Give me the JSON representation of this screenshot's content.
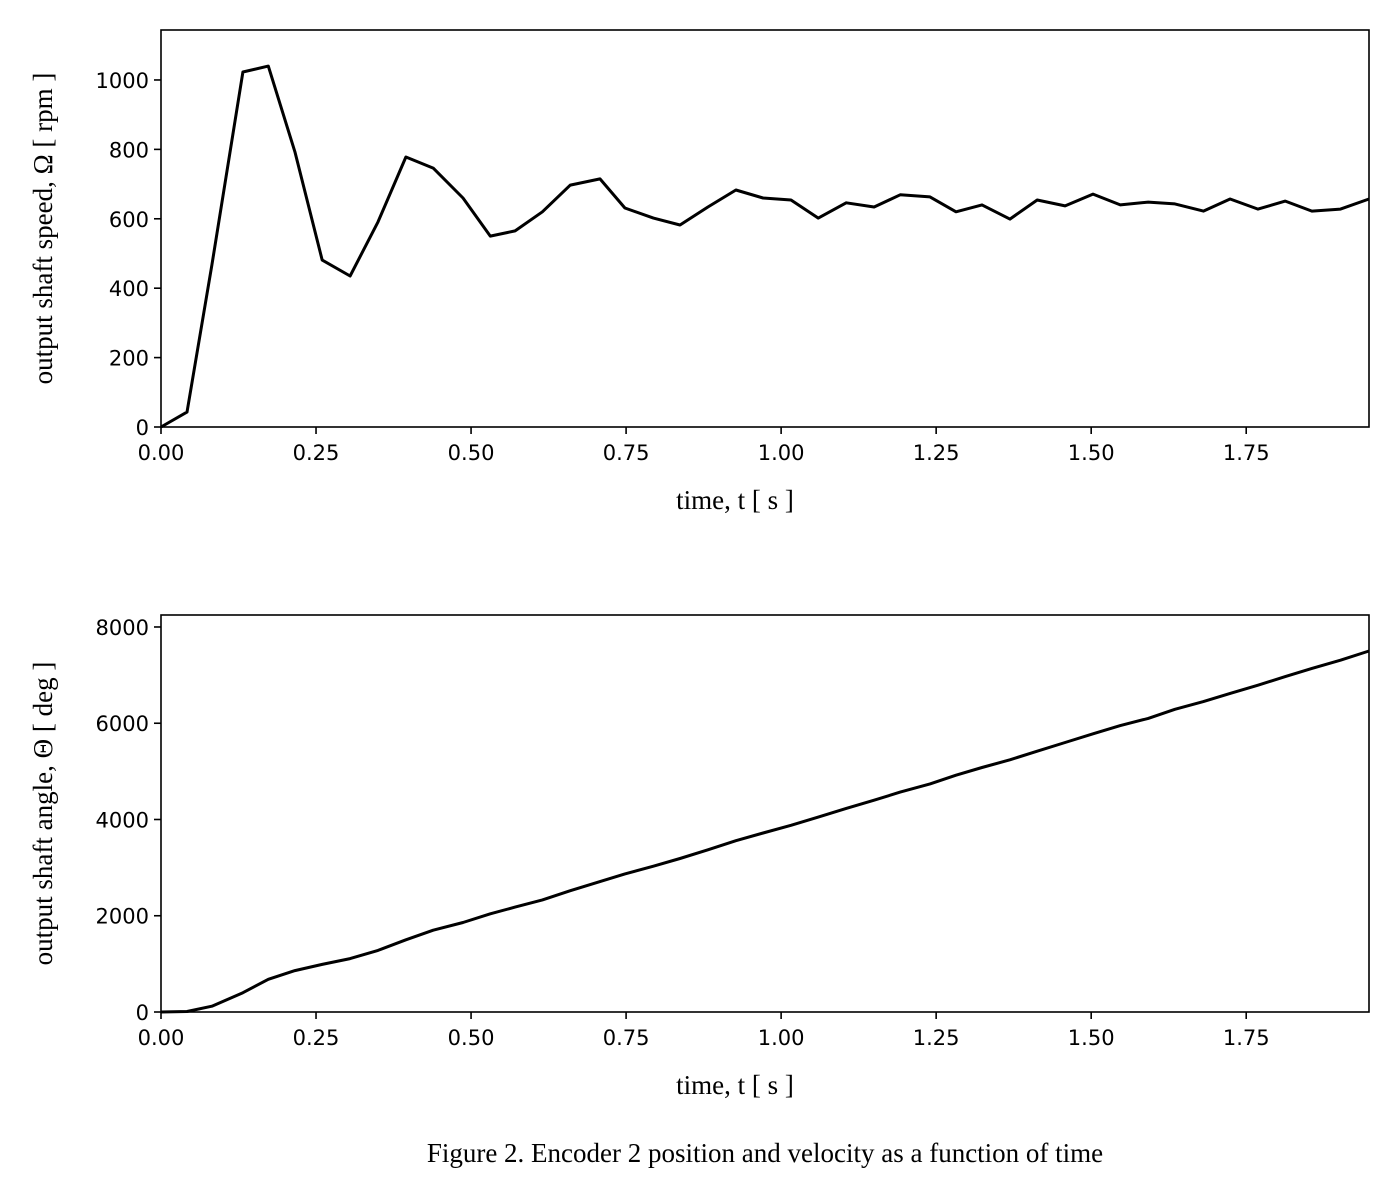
{
  "caption": "Figure 2. Encoder 2 position and velocity as a function of time",
  "chart_data": [
    {
      "type": "line",
      "title": "",
      "xlabel": "time, t [ s ]",
      "ylabel": "output shaft speed, Ω [ rpm ]",
      "xlim": [
        0,
        1.948
      ],
      "ylim": [
        0,
        1144
      ],
      "xticks": [
        0,
        0.25,
        0.5,
        0.75,
        1.0,
        1.25,
        1.5,
        1.75
      ],
      "xtick_labels": [
        "0.00",
        "0.25",
        "0.50",
        "0.75",
        "1.00",
        "1.25",
        "1.50",
        "1.75"
      ],
      "yticks": [
        0,
        200,
        400,
        600,
        800,
        1000
      ],
      "ytick_labels": [
        "0",
        "200",
        "400",
        "600",
        "800",
        "1000"
      ],
      "grid": false,
      "color": "#000000",
      "x": [
        0,
        0.042,
        0.082,
        0.132,
        0.173,
        0.216,
        0.26,
        0.305,
        0.35,
        0.395,
        0.439,
        0.487,
        0.531,
        0.571,
        0.615,
        0.66,
        0.708,
        0.748,
        0.794,
        0.837,
        0.882,
        0.927,
        0.971,
        1.016,
        1.06,
        1.105,
        1.15,
        1.192,
        1.24,
        1.282,
        1.324,
        1.369,
        1.413,
        1.458,
        1.503,
        1.547,
        1.592,
        1.635,
        1.681,
        1.724,
        1.769,
        1.813,
        1.856,
        1.902,
        1.948
      ],
      "y": [
        0,
        43,
        467,
        1023,
        1040,
        793,
        481,
        435,
        591,
        778,
        746,
        660,
        550,
        565,
        620,
        697,
        715,
        631,
        602,
        582,
        634,
        683,
        660,
        654,
        602,
        646,
        634,
        669,
        663,
        620,
        640,
        599,
        654,
        637,
        671,
        640,
        648,
        643,
        622,
        657,
        628,
        651,
        622,
        628,
        657
      ]
    },
    {
      "type": "line",
      "title": "",
      "xlabel": "time, t [ s ]",
      "ylabel": "output shaft angle, Θ [ deg ]",
      "xlim": [
        0,
        1.948
      ],
      "ylim": [
        0,
        8249
      ],
      "xticks": [
        0,
        0.25,
        0.5,
        0.75,
        1.0,
        1.25,
        1.5,
        1.75
      ],
      "xtick_labels": [
        "0.00",
        "0.25",
        "0.50",
        "0.75",
        "1.00",
        "1.25",
        "1.50",
        "1.75"
      ],
      "yticks": [
        0,
        2000,
        4000,
        6000,
        8000
      ],
      "ytick_labels": [
        "0",
        "2000",
        "4000",
        "6000",
        "8000"
      ],
      "grid": false,
      "color": "#000000",
      "x": [
        0,
        0.042,
        0.082,
        0.132,
        0.173,
        0.216,
        0.26,
        0.305,
        0.35,
        0.395,
        0.439,
        0.487,
        0.531,
        0.571,
        0.615,
        0.66,
        0.708,
        0.748,
        0.794,
        0.837,
        0.882,
        0.927,
        0.971,
        1.016,
        1.06,
        1.105,
        1.15,
        1.192,
        1.24,
        1.282,
        1.324,
        1.369,
        1.413,
        1.458,
        1.503,
        1.547,
        1.592,
        1.635,
        1.681,
        1.724,
        1.769,
        1.813,
        1.856,
        1.902,
        1.948
      ],
      "y": [
        0,
        10,
        120,
        400,
        680,
        860,
        990,
        1110,
        1280,
        1500,
        1700,
        1860,
        2040,
        2180,
        2330,
        2520,
        2710,
        2870,
        3030,
        3190,
        3370,
        3560,
        3720,
        3880,
        4050,
        4230,
        4400,
        4570,
        4740,
        4920,
        5080,
        5240,
        5420,
        5600,
        5780,
        5950,
        6100,
        6290,
        6450,
        6620,
        6790,
        6970,
        7140,
        7310,
        7500
      ]
    }
  ]
}
